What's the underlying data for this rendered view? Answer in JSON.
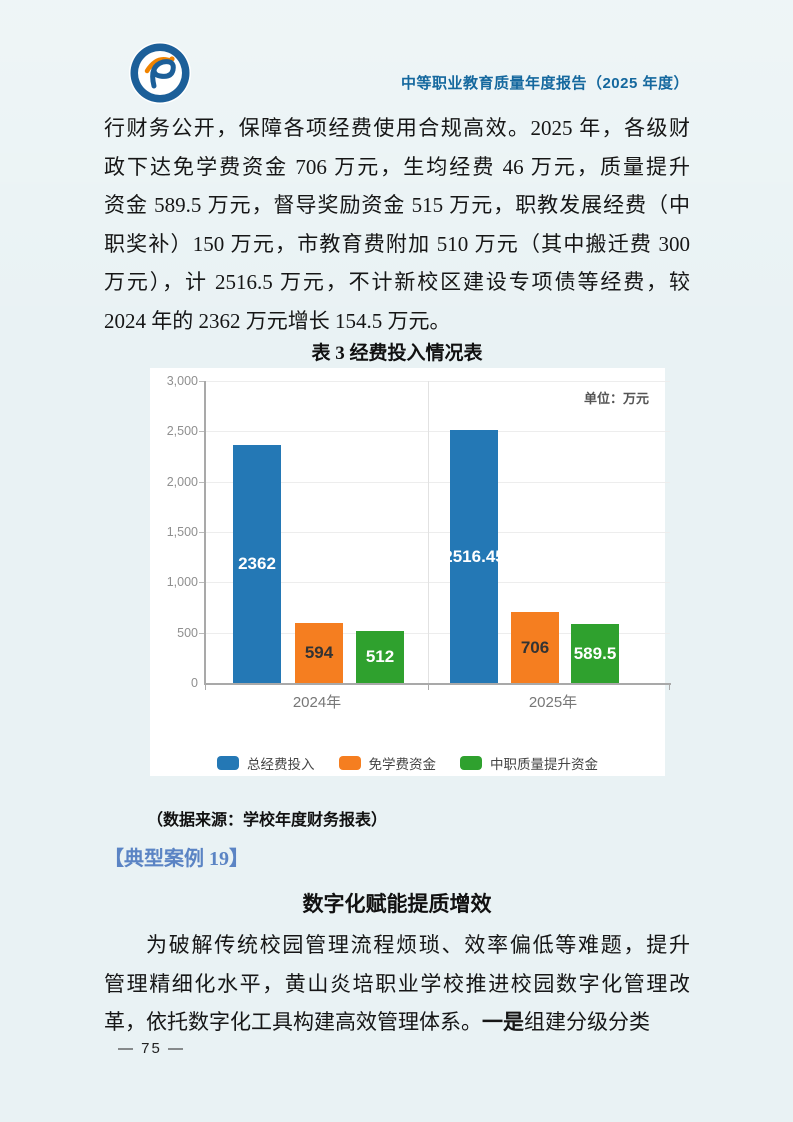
{
  "header": {
    "report_title": "中等职业教育质量年度报告（2025 年度）",
    "logo": "school-emblem"
  },
  "intro_paragraph": {
    "lines": [
      "行财务公开，保障各项经费使用合规高效。2025 年，各级财",
      "政下达免学费资金 706 万元，生均经费 46 万元，质量提升",
      "资金 589.5 万元，督导奖励资金 515 万元，职教发展经费（中",
      "职奖补）150 万元，市教育费附加 510 万元（其中搬迁费 300",
      "万元），计 2516.5 万元，不计新校区建设专项债等经费，较",
      "2024 年的 2362 万元增长 154.5 万元。"
    ]
  },
  "table": {
    "title": "表 3  经费投入情况表",
    "source_note": "（数据来源：学校年度财务报表）"
  },
  "chart_data": {
    "type": "bar",
    "title": "表3 经费投入情况表",
    "unit_label": "单位：万元",
    "categories": [
      "2024年",
      "2025年"
    ],
    "series": [
      {
        "name": "总经费投入",
        "color": "#2478b5",
        "label_color": "#ffffff",
        "values": [
          2362,
          2516.45
        ]
      },
      {
        "name": "免学费资金",
        "color": "#f57e20",
        "label_color": "#333333",
        "values": [
          594,
          706
        ]
      },
      {
        "name": "中职质量提升资金",
        "color": "#2fa12e",
        "label_color": "#ffffff",
        "values": [
          512,
          589.5
        ]
      }
    ],
    "ylim": [
      0,
      3000
    ],
    "yticks": [
      "3,000",
      "2,500",
      "2,000",
      "1,500",
      "1,000",
      "500",
      "0"
    ],
    "grid": true,
    "legend_position": "bottom"
  },
  "case_section": {
    "tag": "【典型案例 19】",
    "heading": "数字化赋能提质增效",
    "para_line1": "为破解传统校园管理流程烦琐、效率偏低等难题，提升",
    "para_line2": "管理精细化水平，黄山炎培职业学校推进校园数字化管理改",
    "para_line3_pre": "革，依托数字化工具构建高效管理体系。",
    "para_line3_bold": "一是",
    "para_line3_post": "组建分级分类"
  },
  "footer": {
    "page_number": "— 75 —"
  },
  "colors": {
    "page_background": "#e9f2f4",
    "header_title": "#15689e",
    "case_tag_blue": "#5b84c4",
    "bar_blue": "#2478b5",
    "bar_orange": "#f57e20",
    "bar_green": "#2fa12e"
  }
}
